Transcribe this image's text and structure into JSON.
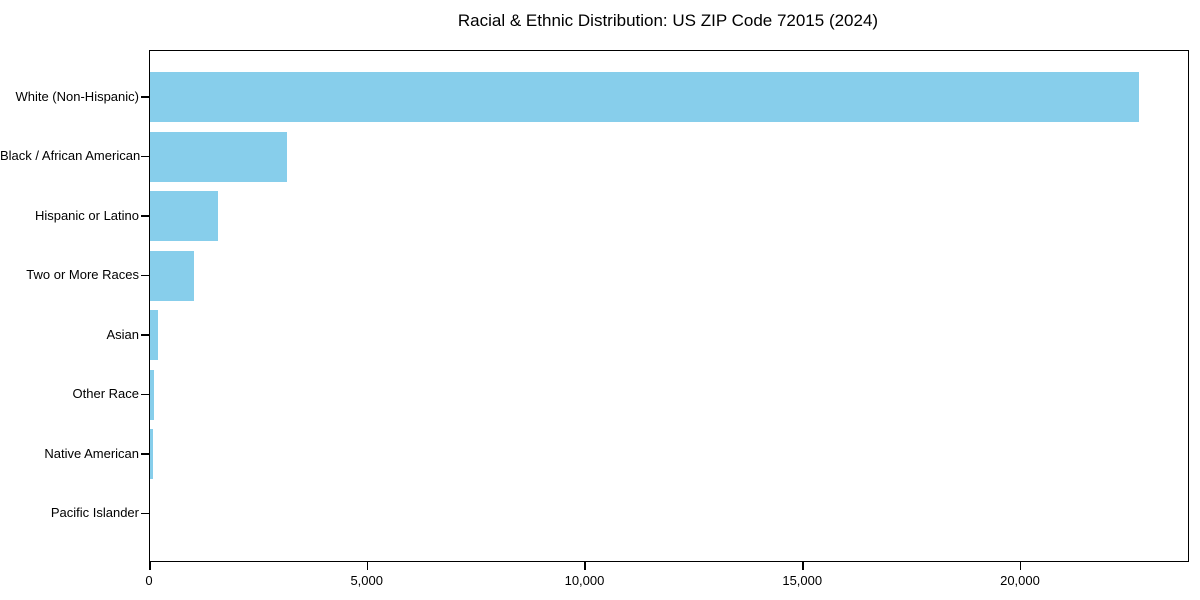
{
  "chart_data": {
    "type": "bar",
    "orientation": "horizontal",
    "title": "Racial & Ethnic Distribution: US ZIP Code 72015 (2024)",
    "categories": [
      "White (Non-Hispanic)",
      "Black / African American",
      "Hispanic or Latino",
      "Two or More Races",
      "Asian",
      "Other Race",
      "Native American",
      "Pacific Islander"
    ],
    "values": [
      22700,
      3140,
      1550,
      1010,
      190,
      100,
      60,
      0
    ],
    "xlabel": "",
    "ylabel": "",
    "xlim": [
      0,
      23835
    ],
    "x_ticks": [
      0,
      5000,
      10000,
      15000,
      20000
    ],
    "x_tick_labels": [
      "0",
      "5,000",
      "10,000",
      "15,000",
      "20,000"
    ],
    "grid": false,
    "legend_position": "none",
    "bar_color": "#87CEEB",
    "frame_color": "#000000",
    "background_color": "#ffffff"
  }
}
